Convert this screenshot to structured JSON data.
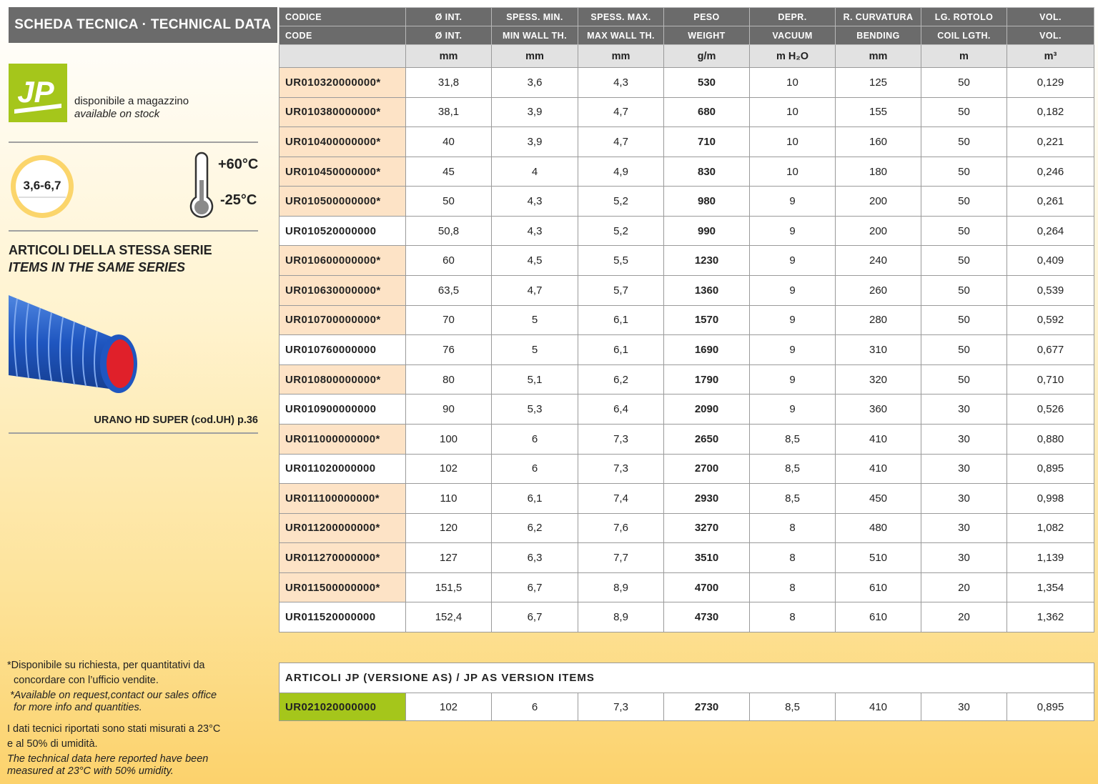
{
  "sidebar": {
    "title": "SCHEDA TECNICA · TECHNICAL DATA",
    "logo": "JP",
    "stock_it": "disponibile a magazzino",
    "stock_en": "available on stock",
    "thickness_range": "3,6-6,7",
    "temp_max": "+60°C",
    "temp_min": "-25°C",
    "series_it": "ARTICOLI DELLA STESSA SERIE",
    "series_en": "ITEMS IN THE SAME SERIES",
    "product_caption": "URANO HD SUPER (cod.UH) p.36",
    "notes": {
      "availability_it": [
        "*Disponibile su richiesta, per quantitativi da",
        "concordare con l’ufficio vendite."
      ],
      "availability_en": [
        "*Available on request,contact our sales office",
        "for more info and quantities."
      ],
      "conditions_it": [
        "I dati tecnici riportati sono stati misurati a 23°C",
        "e al 50% di umidità."
      ],
      "conditions_en": [
        "The technical data here reported have been",
        "measured at 23°C with 50% umidity."
      ]
    }
  },
  "table": {
    "headers_it": [
      "CODICE",
      "Ø INT.",
      "SPESS. MIN.",
      "SPESS. MAX.",
      "PESO",
      "DEPR.",
      "R. CURVATURA",
      "LG. ROTOLO",
      "VOL."
    ],
    "headers_en": [
      "CODE",
      "Ø INT.",
      "MIN WALL TH.",
      "MAX WALL TH.",
      "WEIGHT",
      "VACUUM",
      "BENDING",
      "COIL LGTH.",
      "VOL."
    ],
    "units": [
      null,
      "mm",
      "mm",
      "mm",
      "g/m",
      "m H₂O",
      "mm",
      "m",
      "m³"
    ],
    "rows": [
      [
        "UR010320000000*",
        "31,8",
        "3,6",
        "4,3",
        "530",
        "10",
        "125",
        "50",
        "0,129"
      ],
      [
        "UR010380000000*",
        "38,1",
        "3,9",
        "4,7",
        "680",
        "10",
        "155",
        "50",
        "0,182"
      ],
      [
        "UR010400000000*",
        "40",
        "3,9",
        "4,7",
        "710",
        "10",
        "160",
        "50",
        "0,221"
      ],
      [
        "UR010450000000*",
        "45",
        "4",
        "4,9",
        "830",
        "10",
        "180",
        "50",
        "0,246"
      ],
      [
        "UR010500000000*",
        "50",
        "4,3",
        "5,2",
        "980",
        "9",
        "200",
        "50",
        "0,261"
      ],
      [
        "UR010520000000",
        "50,8",
        "4,3",
        "5,2",
        "990",
        "9",
        "200",
        "50",
        "0,264"
      ],
      [
        "UR010600000000*",
        "60",
        "4,5",
        "5,5",
        "1230",
        "9",
        "240",
        "50",
        "0,409"
      ],
      [
        "UR010630000000*",
        "63,5",
        "4,7",
        "5,7",
        "1360",
        "9",
        "260",
        "50",
        "0,539"
      ],
      [
        "UR010700000000*",
        "70",
        "5",
        "6,1",
        "1570",
        "9",
        "280",
        "50",
        "0,592"
      ],
      [
        "UR010760000000",
        "76",
        "5",
        "6,1",
        "1690",
        "9",
        "310",
        "50",
        "0,677"
      ],
      [
        "UR010800000000*",
        "80",
        "5,1",
        "6,2",
        "1790",
        "9",
        "320",
        "50",
        "0,710"
      ],
      [
        "UR010900000000",
        "90",
        "5,3",
        "6,4",
        "2090",
        "9",
        "360",
        "30",
        "0,526"
      ],
      [
        "UR011000000000*",
        "100",
        "6",
        "7,3",
        "2650",
        "8,5",
        "410",
        "30",
        "0,880"
      ],
      [
        "UR011020000000",
        "102",
        "6",
        "7,3",
        "2700",
        "8,5",
        "410",
        "30",
        "0,895"
      ],
      [
        "UR011100000000*",
        "110",
        "6,1",
        "7,4",
        "2930",
        "8,5",
        "450",
        "30",
        "0,998"
      ],
      [
        "UR011200000000*",
        "120",
        "6,2",
        "7,6",
        "3270",
        "8",
        "480",
        "30",
        "1,082"
      ],
      [
        "UR011270000000*",
        "127",
        "6,3",
        "7,7",
        "3510",
        "8",
        "510",
        "30",
        "1,139"
      ],
      [
        "UR011500000000*",
        "151,5",
        "6,7",
        "8,9",
        "4700",
        "8",
        "610",
        "20",
        "1,354"
      ],
      [
        "UR011520000000",
        "152,4",
        "6,7",
        "8,9",
        "4730",
        "8",
        "610",
        "20",
        "1,362"
      ]
    ]
  },
  "as_version": {
    "title": "ARTICOLI JP (VERSIONE AS) / JP AS VERSION ITEMS",
    "row": [
      "UR021020000000",
      "102",
      "6",
      "7,3",
      "2730",
      "8,5",
      "410",
      "30",
      "0,895"
    ]
  }
}
